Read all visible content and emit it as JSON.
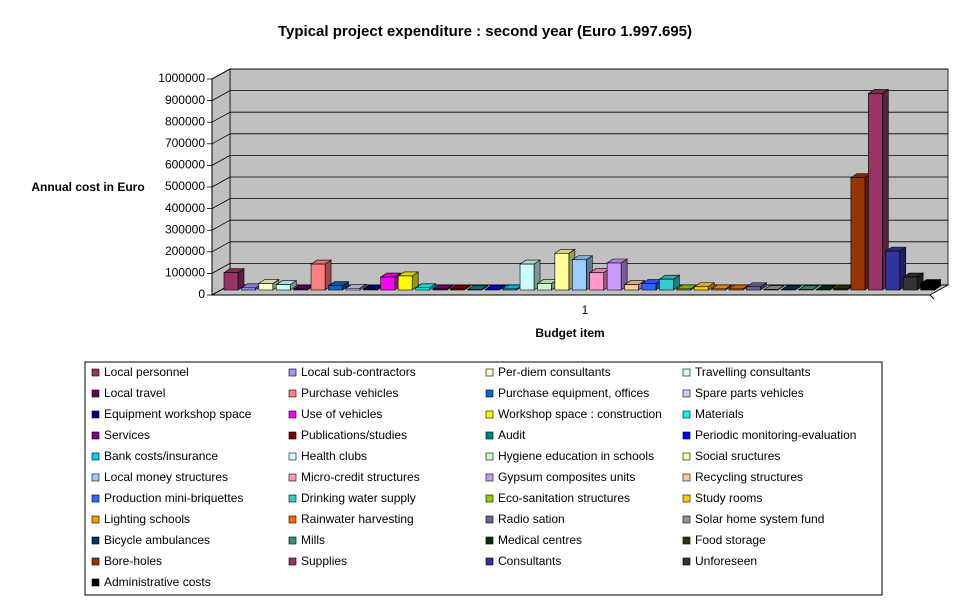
{
  "chart_data": {
    "type": "bar3d",
    "title": "Typical project expenditure : second year (Euro 1.997.695)",
    "y_label": "Annual cost in Euro",
    "x_label": "Budget item",
    "categories": [
      "1"
    ],
    "ylim": [
      0,
      1000000
    ],
    "yticks": [
      0,
      100000,
      200000,
      300000,
      400000,
      500000,
      600000,
      700000,
      800000,
      900000,
      1000000
    ],
    "grid": true,
    "series": [
      {
        "name": "Local personnel",
        "color": "#993366",
        "values": [
          80000
        ]
      },
      {
        "name": "Local sub-contractors",
        "color": "#9999FF",
        "values": [
          10000
        ]
      },
      {
        "name": "Per-diem consultants",
        "color": "#FFFFCC",
        "values": [
          30000
        ]
      },
      {
        "name": "Travelling consultants",
        "color": "#CCFFFF",
        "values": [
          25000
        ]
      },
      {
        "name": "Local travel",
        "color": "#660066",
        "values": [
          5000
        ]
      },
      {
        "name": "Purchase vehicles",
        "color": "#FF8080",
        "values": [
          120000
        ]
      },
      {
        "name": "Purchase equipment, offices",
        "color": "#0066CC",
        "values": [
          20000
        ]
      },
      {
        "name": "Spare parts vehicles",
        "color": "#CCCCFF",
        "values": [
          8000
        ]
      },
      {
        "name": "Equipment workshop space",
        "color": "#000080",
        "values": [
          5000
        ]
      },
      {
        "name": "Use of vehicles",
        "color": "#FF00FF",
        "values": [
          60000
        ]
      },
      {
        "name": "Workshop space : construction",
        "color": "#FFFF00",
        "values": [
          65000
        ]
      },
      {
        "name": "Materials",
        "color": "#00FFFF",
        "values": [
          10000
        ]
      },
      {
        "name": "Services",
        "color": "#800080",
        "values": [
          5000
        ]
      },
      {
        "name": "Publications/studies",
        "color": "#800000",
        "values": [
          5000
        ]
      },
      {
        "name": "Audit",
        "color": "#008080",
        "values": [
          3000
        ]
      },
      {
        "name": "Periodic monitoring-evaluation",
        "color": "#0000FF",
        "values": [
          3000
        ]
      },
      {
        "name": "Bank costs/insurance",
        "color": "#00CCFF",
        "values": [
          5000
        ]
      },
      {
        "name": "Health clubs",
        "color": "#CCFFFF",
        "values": [
          120000
        ]
      },
      {
        "name": "Hygiene education in schools",
        "color": "#CCFFCC",
        "values": [
          30000
        ]
      },
      {
        "name": "Social sructures",
        "color": "#FFFF99",
        "values": [
          170000
        ]
      },
      {
        "name": "Local money structures",
        "color": "#99CCFF",
        "values": [
          140000
        ]
      },
      {
        "name": "Micro-credit structures",
        "color": "#FF99CC",
        "values": [
          80000
        ]
      },
      {
        "name": "Gypsum composites units",
        "color": "#CC99FF",
        "values": [
          125000
        ]
      },
      {
        "name": "Recycling structures",
        "color": "#FFCC99",
        "values": [
          25000
        ]
      },
      {
        "name": "Production mini-briquettes",
        "color": "#3366FF",
        "values": [
          30000
        ]
      },
      {
        "name": "Drinking water supply",
        "color": "#33CCCC",
        "values": [
          50000
        ]
      },
      {
        "name": "Eco-sanitation structures",
        "color": "#99CC00",
        "values": [
          5000
        ]
      },
      {
        "name": "Study rooms",
        "color": "#FFCC00",
        "values": [
          15000
        ]
      },
      {
        "name": "Lighting schools",
        "color": "#FF9900",
        "values": [
          5000
        ]
      },
      {
        "name": "Rainwater harvesting",
        "color": "#FF6600",
        "values": [
          5000
        ]
      },
      {
        "name": "Radio sation",
        "color": "#666699",
        "values": [
          15000
        ]
      },
      {
        "name": "Solar home system fund",
        "color": "#969696",
        "values": [
          2000
        ]
      },
      {
        "name": "Bicycle ambulances",
        "color": "#003366",
        "values": [
          2000
        ]
      },
      {
        "name": "Mills",
        "color": "#339966",
        "values": [
          2000
        ]
      },
      {
        "name": "Medical centres",
        "color": "#003300",
        "values": [
          2000
        ]
      },
      {
        "name": "Food storage",
        "color": "#333300",
        "values": [
          5000
        ]
      },
      {
        "name": "Bore-holes",
        "color": "#993300",
        "values": [
          520000
        ]
      },
      {
        "name": "Supplies",
        "color": "#993366",
        "values": [
          910000
        ]
      },
      {
        "name": "Consultants",
        "color": "#333399",
        "values": [
          180000
        ]
      },
      {
        "name": "Unforeseen",
        "color": "#333333",
        "values": [
          60000
        ]
      },
      {
        "name": "Administrative costs",
        "color": "#000000",
        "values": [
          30000
        ]
      }
    ]
  }
}
